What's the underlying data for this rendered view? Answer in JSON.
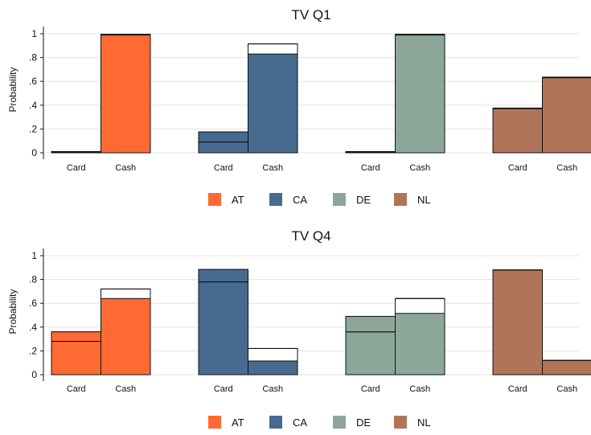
{
  "chart_data": [
    {
      "type": "bar",
      "title": "TV Q1",
      "ylabel": "Probability",
      "xlabel": "",
      "ylim": [
        0,
        1.05
      ],
      "yticks": [
        {
          "value": 0,
          "label": "0"
        },
        {
          "value": 0.2,
          "label": ".2"
        },
        {
          "value": 0.4,
          "label": ".4"
        },
        {
          "value": 0.6,
          "label": ".6"
        },
        {
          "value": 0.8,
          "label": ".8"
        },
        {
          "value": 1,
          "label": "1"
        }
      ],
      "grid": true,
      "legend": "bottom",
      "groups": [
        {
          "series": "AT",
          "bars": [
            {
              "category": "Card",
              "value": 0.01,
              "line_value": 0.005
            },
            {
              "category": "Cash",
              "value": 0.995,
              "line_value": 0.99
            }
          ]
        },
        {
          "series": "CA",
          "bars": [
            {
              "category": "Card",
              "value": 0.175,
              "line_value": 0.09
            },
            {
              "category": "Cash",
              "value": 0.83,
              "line_value": 0.915
            }
          ]
        },
        {
          "series": "DE",
          "bars": [
            {
              "category": "Card",
              "value": 0.01,
              "line_value": 0.005
            },
            {
              "category": "Cash",
              "value": 0.995,
              "line_value": 0.99
            }
          ]
        },
        {
          "series": "NL",
          "bars": [
            {
              "category": "Card",
              "value": 0.37,
              "line_value": 0.375
            },
            {
              "category": "Cash",
              "value": 0.63,
              "line_value": 0.635
            }
          ]
        }
      ]
    },
    {
      "type": "bar",
      "title": "TV Q4",
      "ylabel": "Probability",
      "xlabel": "",
      "ylim": [
        0,
        1.05
      ],
      "yticks": [
        {
          "value": 0,
          "label": "0"
        },
        {
          "value": 0.2,
          "label": ".2"
        },
        {
          "value": 0.4,
          "label": ".4"
        },
        {
          "value": 0.6,
          "label": ".6"
        },
        {
          "value": 0.8,
          "label": ".8"
        },
        {
          "value": 1,
          "label": "1"
        }
      ],
      "grid": true,
      "legend": "bottom",
      "groups": [
        {
          "series": "AT",
          "bars": [
            {
              "category": "Card",
              "value": 0.36,
              "line_value": 0.28
            },
            {
              "category": "Cash",
              "value": 0.64,
              "line_value": 0.72
            }
          ]
        },
        {
          "series": "CA",
          "bars": [
            {
              "category": "Card",
              "value": 0.885,
              "line_value": 0.78
            },
            {
              "category": "Cash",
              "value": 0.115,
              "line_value": 0.22
            }
          ]
        },
        {
          "series": "DE",
          "bars": [
            {
              "category": "Card",
              "value": 0.49,
              "line_value": 0.36
            },
            {
              "category": "Cash",
              "value": 0.515,
              "line_value": 0.64
            }
          ]
        },
        {
          "series": "NL",
          "bars": [
            {
              "category": "Card",
              "value": 0.88,
              "line_value": 0.88
            },
            {
              "category": "Cash",
              "value": 0.12,
              "line_value": 0.12
            }
          ]
        }
      ]
    }
  ],
  "legend": [
    {
      "label": "AT",
      "color": "#ff6a33"
    },
    {
      "label": "CA",
      "color": "#476a8f"
    },
    {
      "label": "DE",
      "color": "#8ca79a"
    },
    {
      "label": "NL",
      "color": "#b07558"
    }
  ],
  "colors": {
    "AT": "#ff6a33",
    "CA": "#476a8f",
    "DE": "#8ca79a",
    "NL": "#b07558"
  }
}
